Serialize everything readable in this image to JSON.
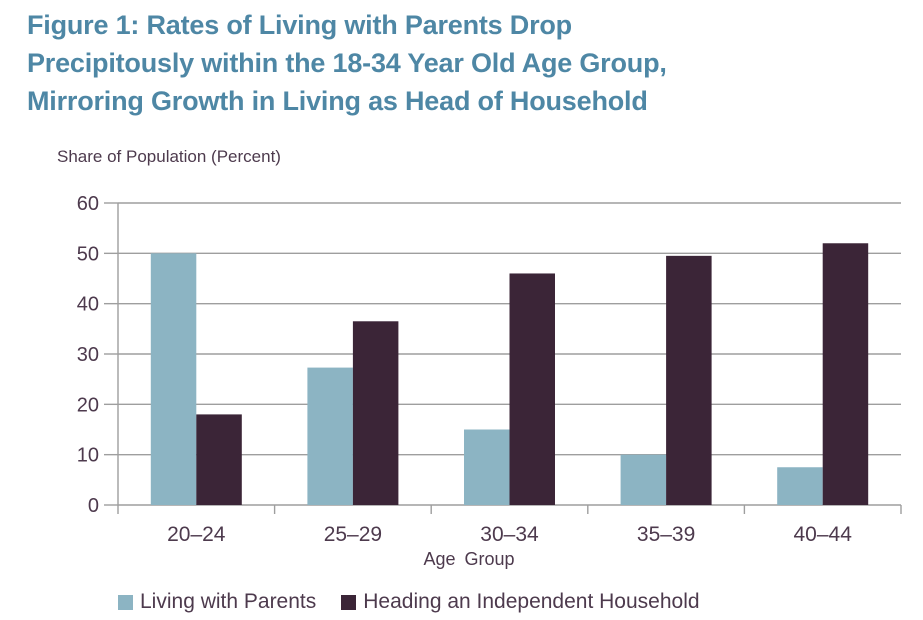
{
  "page": {
    "background_color": "#ffffff",
    "title_color": "#4E87A5",
    "text_color": "#4D3A4D",
    "grid_color": "#9E9E9E"
  },
  "chart_data": {
    "type": "bar",
    "title": "Figure 1:  Rates of Living with Parents Drop\nPrecipitously within the 18-34 Year Old Age Group,\nMirroring Growth in Living as Head of Household",
    "y_axis_title": "Share of Population (Percent)",
    "xlabel": "Age Group",
    "categories": [
      "20–24",
      "25–29",
      "30–34",
      "35–39",
      "40–44"
    ],
    "series": [
      {
        "name": "Living with Parents",
        "color": "#8CB4C3",
        "values": [
          50.0,
          27.3,
          15.0,
          10.0,
          7.5
        ]
      },
      {
        "name": "Heading an Independent Household",
        "color": "#3B2537",
        "values": [
          18.0,
          36.5,
          46.0,
          49.5,
          52.0
        ]
      }
    ],
    "ylim": [
      0,
      60
    ],
    "ytick_step": 10,
    "yticks": [
      0,
      10,
      20,
      30,
      40,
      50,
      60
    ],
    "grid": true,
    "legend_position": "bottom"
  }
}
